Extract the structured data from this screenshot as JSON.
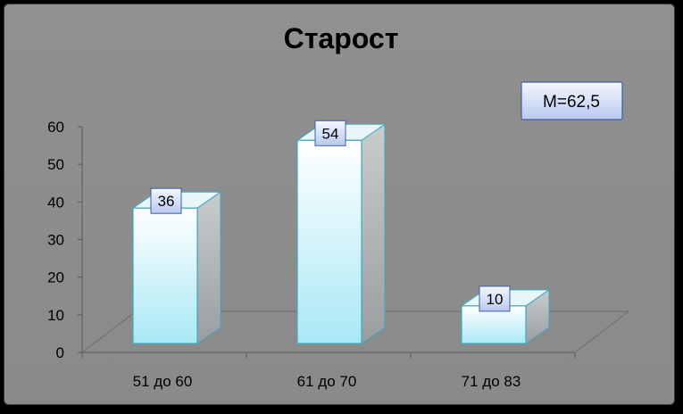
{
  "chart_data": {
    "type": "bar",
    "title": "Старост",
    "categories": [
      "51 до 60",
      "61 до 70",
      "71 до 83"
    ],
    "values": [
      36,
      54,
      10
    ],
    "data_labels": [
      "36",
      "54",
      "10"
    ],
    "yticks": [
      "0",
      "10",
      "20",
      "30",
      "40",
      "50",
      "60"
    ],
    "ylim": [
      0,
      60
    ],
    "grid": false,
    "legend": "none",
    "annotation": "M=62,5",
    "colors": {
      "bar_top": "#ffffff",
      "bar_bottom": "#b0ecf7",
      "bar_edge": "#3fa7c0",
      "background": "#8e8e8e"
    }
  }
}
